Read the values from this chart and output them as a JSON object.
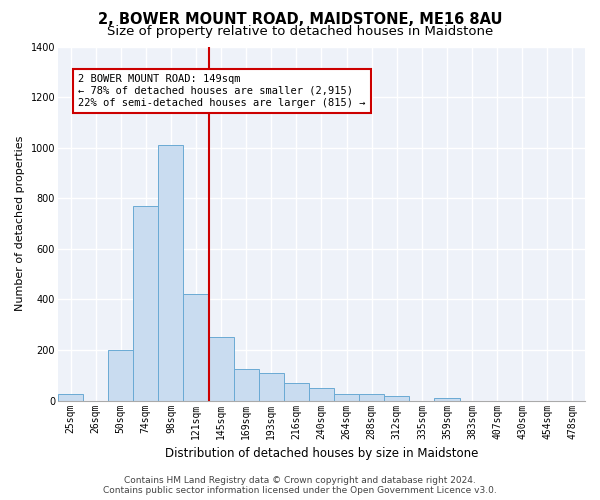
{
  "title": "2, BOWER MOUNT ROAD, MAIDSTONE, ME16 8AU",
  "subtitle": "Size of property relative to detached houses in Maidstone",
  "xlabel": "Distribution of detached houses by size in Maidstone",
  "ylabel": "Number of detached properties",
  "bar_labels": [
    "25sqm",
    "26sqm",
    "50sqm",
    "74sqm",
    "98sqm",
    "121sqm",
    "145sqm",
    "169sqm",
    "193sqm",
    "216sqm",
    "240sqm",
    "264sqm",
    "288sqm",
    "312sqm",
    "335sqm",
    "359sqm",
    "383sqm",
    "407sqm",
    "430sqm",
    "454sqm",
    "478sqm"
  ],
  "bar_heights": [
    25,
    0,
    200,
    770,
    1010,
    420,
    250,
    125,
    110,
    70,
    50,
    25,
    25,
    20,
    0,
    10,
    0,
    0,
    0,
    0,
    0
  ],
  "bar_color": "#c9dcf0",
  "bar_edge_color": "#6aaad4",
  "vline_color": "#cc0000",
  "vline_index": 6,
  "annotation_text_line1": "2 BOWER MOUNT ROAD: 149sqm",
  "annotation_text_line2": "← 78% of detached houses are smaller (2,915)",
  "annotation_text_line3": "22% of semi-detached houses are larger (815) →",
  "annotation_box_color": "#cc0000",
  "footer_text": "Contains HM Land Registry data © Crown copyright and database right 2024.\nContains public sector information licensed under the Open Government Licence v3.0.",
  "ylim": [
    0,
    1400
  ],
  "yticks": [
    0,
    200,
    400,
    600,
    800,
    1000,
    1200,
    1400
  ],
  "background_color": "#eef2f9",
  "grid_color": "#ffffff",
  "title_fontsize": 10.5,
  "subtitle_fontsize": 9.5,
  "xlabel_fontsize": 8.5,
  "ylabel_fontsize": 8,
  "tick_fontsize": 7,
  "annotation_fontsize": 7.5,
  "footer_fontsize": 6.5
}
